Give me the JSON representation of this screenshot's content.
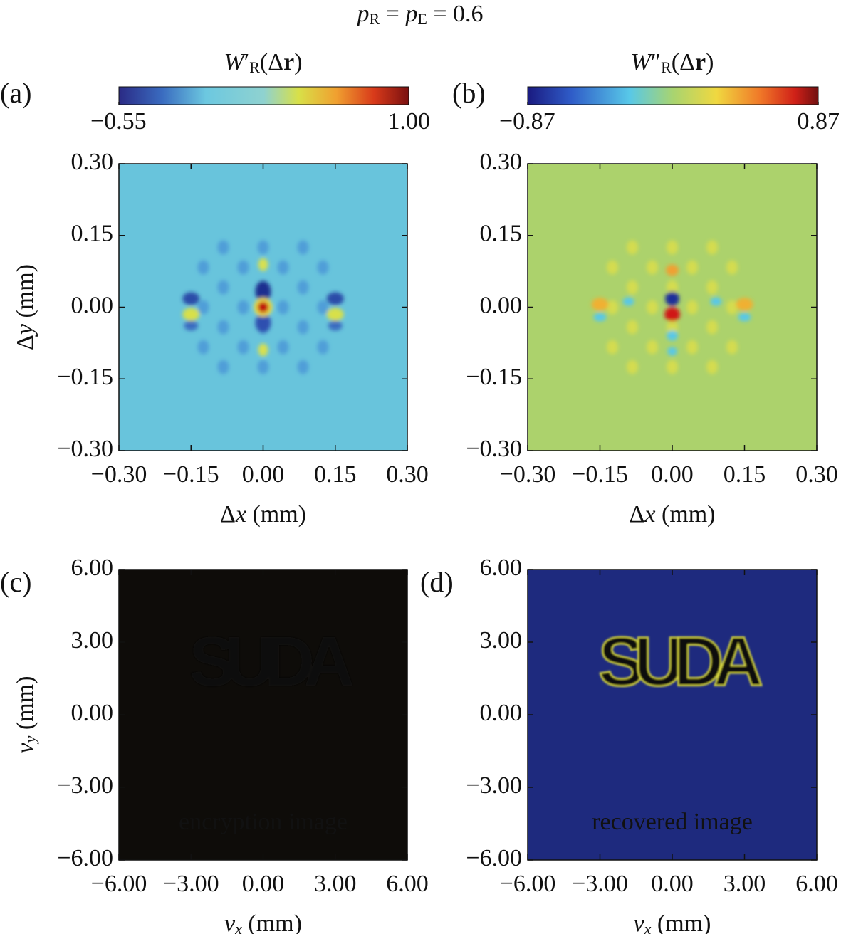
{
  "title": [
    "p",
    "R",
    " = ",
    "p",
    "E",
    " = 0.6"
  ],
  "chart_data": [
    {
      "type": "heatmap",
      "panel_label": "(a)",
      "xlabel": [
        "Δ",
        "x",
        " (mm)"
      ],
      "ylabel": [
        "Δ",
        "y",
        " (mm)"
      ],
      "xlim": [
        -0.3,
        0.3
      ],
      "ylim": [
        -0.3,
        0.3
      ],
      "xticks": [
        {
          "value": -0.3,
          "label": "−0.30"
        },
        {
          "value": -0.15,
          "label": "−0.15"
        },
        {
          "value": 0,
          "label": "0.00"
        },
        {
          "value": 0.15,
          "label": "0.15"
        },
        {
          "value": 0.3,
          "label": "0.30"
        }
      ],
      "yticks": [
        {
          "value": -0.3,
          "label": "−0.30"
        },
        {
          "value": -0.15,
          "label": "−0.15"
        },
        {
          "value": 0,
          "label": "0.00"
        },
        {
          "value": 0.15,
          "label": "0.15"
        },
        {
          "value": 0.3,
          "label": "0.30"
        }
      ],
      "colorbar": {
        "label": [
          "W",
          "′",
          "R",
          "(Δ",
          "r",
          ")"
        ],
        "clim": [
          -0.55,
          1.0
        ],
        "ticks": [
          {
            "value": -0.55,
            "label": "−0.55"
          },
          {
            "value": 1.0,
            "label": "1.00"
          }
        ]
      }
    },
    {
      "type": "heatmap",
      "panel_label": "(b)",
      "xlabel": [
        "Δ",
        "x",
        " (mm)"
      ],
      "xlim": [
        -0.3,
        0.3
      ],
      "ylim": [
        -0.3,
        0.3
      ],
      "xticks": [
        {
          "value": -0.3,
          "label": "−0.30"
        },
        {
          "value": -0.15,
          "label": "−0.15"
        },
        {
          "value": 0,
          "label": "0.00"
        },
        {
          "value": 0.15,
          "label": "0.15"
        },
        {
          "value": 0.3,
          "label": "0.30"
        }
      ],
      "yticks": [
        {
          "value": -0.3,
          "label": "−0.30"
        },
        {
          "value": -0.15,
          "label": "−0.15"
        },
        {
          "value": 0,
          "label": "0.00"
        },
        {
          "value": 0.15,
          "label": "0.15"
        },
        {
          "value": 0.3,
          "label": "0.30"
        }
      ],
      "colorbar": {
        "label": [
          "W",
          "″",
          "R",
          "(Δ",
          "r",
          ")"
        ],
        "clim": [
          -0.87,
          0.87
        ],
        "ticks": [
          {
            "value": -0.87,
            "label": "−0.87"
          },
          {
            "value": 0.87,
            "label": "0.87"
          }
        ]
      }
    },
    {
      "type": "image",
      "panel_label": "(c)",
      "xlabel": [
        "v",
        "x",
        " (mm)"
      ],
      "ylabel": [
        "v",
        "y",
        " (mm)"
      ],
      "xlim": [
        -6,
        6
      ],
      "ylim": [
        -6,
        6
      ],
      "xticks": [
        {
          "value": -6,
          "label": "−6.00"
        },
        {
          "value": -3,
          "label": "−3.00"
        },
        {
          "value": 0,
          "label": "0.00"
        },
        {
          "value": 3,
          "label": "3.00"
        },
        {
          "value": 6,
          "label": "6.00"
        }
      ],
      "yticks": [
        {
          "value": -6,
          "label": "−6.00"
        },
        {
          "value": -3,
          "label": "−3.00"
        },
        {
          "value": 0,
          "label": "0.00"
        },
        {
          "value": 3,
          "label": "3.00"
        },
        {
          "value": 6,
          "label": "6.00"
        }
      ],
      "image_text": "SUDA",
      "annotation": "encryption image"
    },
    {
      "type": "image",
      "panel_label": "(d)",
      "xlabel": [
        "v",
        "x",
        " (mm)"
      ],
      "xlim": [
        -6,
        6
      ],
      "ylim": [
        -6,
        6
      ],
      "xticks": [
        {
          "value": -6,
          "label": "−6.00"
        },
        {
          "value": -3,
          "label": "−3.00"
        },
        {
          "value": 0,
          "label": "0.00"
        },
        {
          "value": 3,
          "label": "3.00"
        },
        {
          "value": 6,
          "label": "6.00"
        }
      ],
      "yticks": [
        {
          "value": -6,
          "label": "−6.00"
        },
        {
          "value": -3,
          "label": "−3.00"
        },
        {
          "value": 0,
          "label": "0.00"
        },
        {
          "value": 3,
          "label": "3.00"
        },
        {
          "value": 6,
          "label": "6.00"
        }
      ],
      "image_text": "SUDA",
      "annotation": "recovered image"
    }
  ]
}
